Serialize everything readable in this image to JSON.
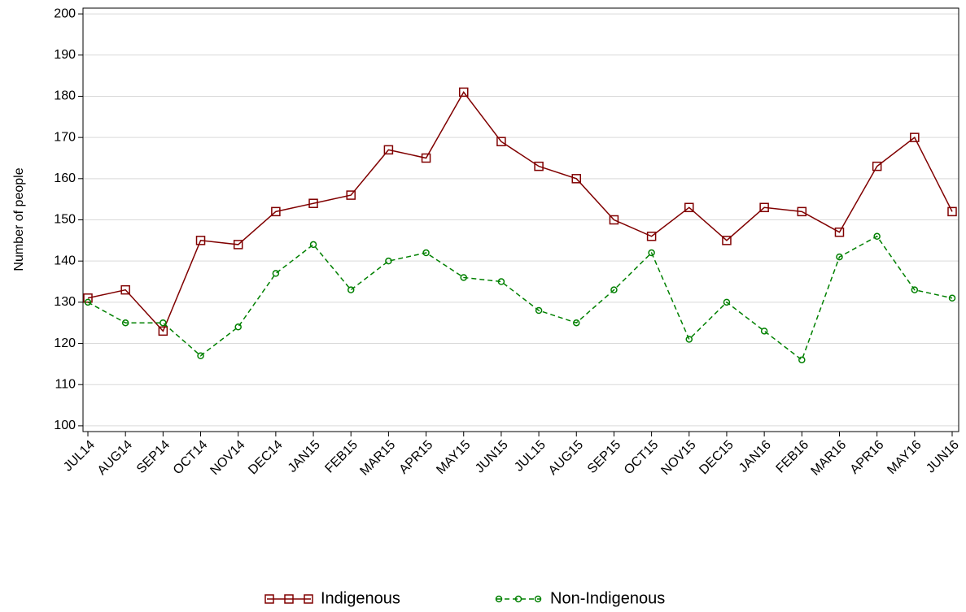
{
  "chart_data": {
    "type": "line",
    "y_label": "Number of people",
    "categories": [
      "JUL14",
      "AUG14",
      "SEP14",
      "OCT14",
      "NOV14",
      "DEC14",
      "JAN15",
      "FEB15",
      "MAR15",
      "APR15",
      "MAY15",
      "JUN15",
      "JUL15",
      "AUG15",
      "SEP15",
      "OCT15",
      "NOV15",
      "DEC15",
      "JAN16",
      "FEB16",
      "MAR16",
      "APR16",
      "MAY16",
      "JUN16"
    ],
    "series": [
      {
        "name": "Indigenous",
        "color": "#800000",
        "marker": "square",
        "dashed": false,
        "values": [
          131,
          133,
          123,
          145,
          144,
          152,
          154,
          156,
          167,
          165,
          181,
          169,
          163,
          160,
          150,
          146,
          153,
          145,
          153,
          152,
          147,
          163,
          170,
          152
        ]
      },
      {
        "name": "Non-Indigenous",
        "color": "#008000",
        "marker": "circle",
        "dashed": true,
        "values": [
          130,
          125,
          125,
          117,
          124,
          137,
          144,
          133,
          140,
          142,
          136,
          135,
          128,
          125,
          133,
          142,
          121,
          130,
          123,
          116,
          141,
          146,
          133,
          131
        ]
      }
    ],
    "ylim": [
      98.6,
      201.4
    ],
    "yticks": [
      100,
      110,
      120,
      130,
      140,
      150,
      160,
      170,
      180,
      190,
      200
    ],
    "grid": true,
    "legend": "bottom"
  }
}
